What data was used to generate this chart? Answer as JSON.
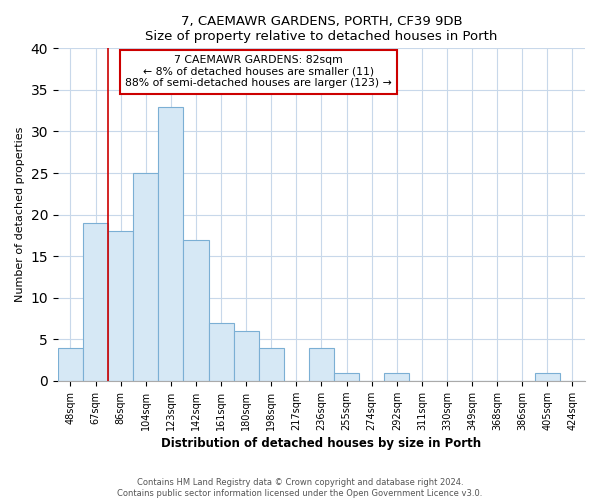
{
  "title": "7, CAEMAWR GARDENS, PORTH, CF39 9DB",
  "subtitle": "Size of property relative to detached houses in Porth",
  "xlabel": "Distribution of detached houses by size in Porth",
  "ylabel": "Number of detached properties",
  "bar_labels": [
    "48sqm",
    "67sqm",
    "86sqm",
    "104sqm",
    "123sqm",
    "142sqm",
    "161sqm",
    "180sqm",
    "198sqm",
    "217sqm",
    "236sqm",
    "255sqm",
    "274sqm",
    "292sqm",
    "311sqm",
    "330sqm",
    "349sqm",
    "368sqm",
    "386sqm",
    "405sqm",
    "424sqm"
  ],
  "bar_values": [
    4,
    19,
    18,
    25,
    33,
    17,
    7,
    6,
    4,
    0,
    4,
    1,
    0,
    1,
    0,
    0,
    0,
    0,
    0,
    1,
    0
  ],
  "bar_color": "#d6e8f5",
  "bar_edge_color": "#7bafd4",
  "marker_color": "#cc0000",
  "annotation_line1": "7 CAEMAWR GARDENS: 82sqm",
  "annotation_line2": "← 8% of detached houses are smaller (11)",
  "annotation_line3": "88% of semi-detached houses are larger (123) →",
  "annotation_box_color": "#ffffff",
  "annotation_box_edge": "#cc0000",
  "ylim": [
    0,
    40
  ],
  "yticks": [
    0,
    5,
    10,
    15,
    20,
    25,
    30,
    35,
    40
  ],
  "footer": "Contains HM Land Registry data © Crown copyright and database right 2024.\nContains public sector information licensed under the Open Government Licence v3.0.",
  "background_color": "#ffffff",
  "grid_color": "#c8d8ea"
}
